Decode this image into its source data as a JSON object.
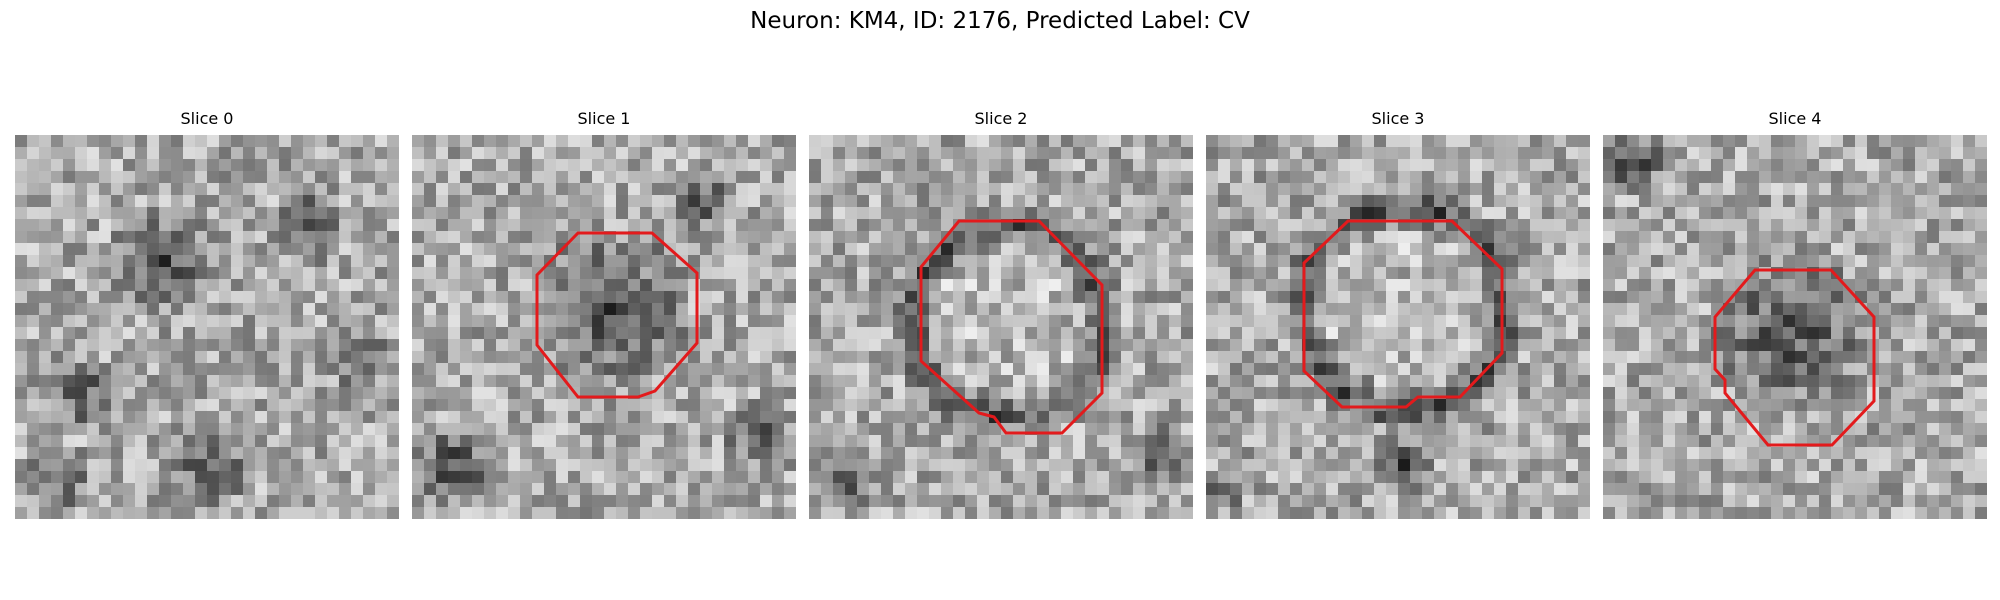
{
  "figure": {
    "title": "Neuron: KM4, ID: 2176, Predicted Label: CV"
  },
  "panels": [
    {
      "title": "Slice 0",
      "has_contour": false
    },
    {
      "title": "Slice 1",
      "has_contour": true
    },
    {
      "title": "Slice 2",
      "has_contour": true
    },
    {
      "title": "Slice 3",
      "has_contour": true
    },
    {
      "title": "Slice 4",
      "has_contour": true
    }
  ],
  "colors": {
    "contour": "#e31a1c",
    "background": "#ffffff"
  }
}
